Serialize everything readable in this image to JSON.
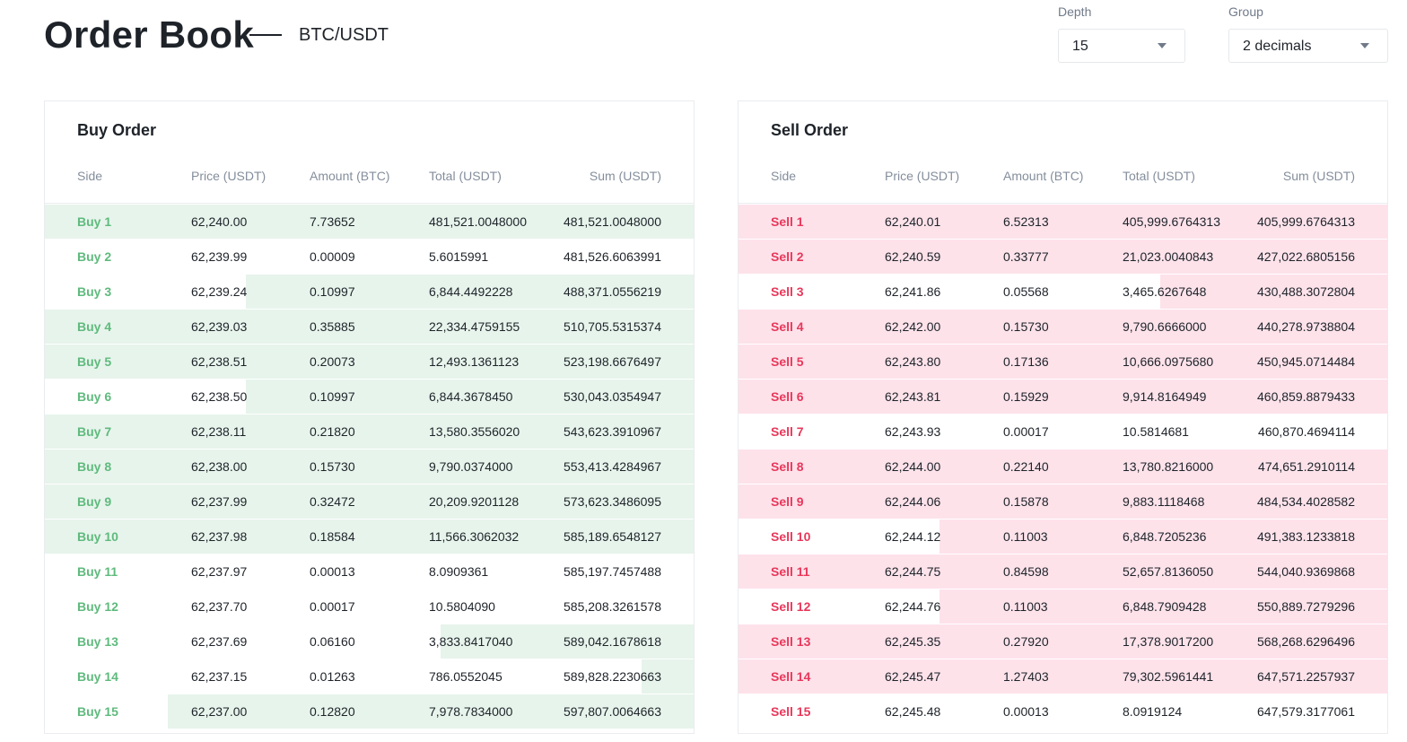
{
  "header": {
    "title": "Order Book",
    "pair": "BTC/USDT"
  },
  "controls": {
    "depth": {
      "label": "Depth",
      "value": "15"
    },
    "group": {
      "label": "Group",
      "value": "2 decimals"
    }
  },
  "colors": {
    "buy_text": "#5fba7d",
    "buy_fill": "#e7f4ec",
    "sell_text": "#e8385b",
    "sell_fill": "#fde2ea"
  },
  "columns": [
    "Side",
    "Price (USDT)",
    "Amount (BTC)",
    "Total (USDT)",
    "Sum (USDT)"
  ],
  "buy": {
    "title": "Buy Order",
    "rows": [
      {
        "side": "Buy 1",
        "price": "62,240.00",
        "amount": "7.73652",
        "total": "481,521.0048000",
        "sum": "481,521.0048000",
        "depth": 1.0
      },
      {
        "side": "Buy 2",
        "price": "62,239.99",
        "amount": "0.00009",
        "total": "5.6015991",
        "sum": "481,526.6063991",
        "depth": 0.0
      },
      {
        "side": "Buy 3",
        "price": "62,239.24",
        "amount": "0.10997",
        "total": "6,844.4492228",
        "sum": "488,371.0556219",
        "depth": 0.69
      },
      {
        "side": "Buy 4",
        "price": "62,239.03",
        "amount": "0.35885",
        "total": "22,334.4759155",
        "sum": "510,705.5315374",
        "depth": 1.0
      },
      {
        "side": "Buy 5",
        "price": "62,238.51",
        "amount": "0.20073",
        "total": "12,493.1361123",
        "sum": "523,198.6676497",
        "depth": 1.0
      },
      {
        "side": "Buy 6",
        "price": "62,238.50",
        "amount": "0.10997",
        "total": "6,844.3678450",
        "sum": "530,043.0354947",
        "depth": 0.69
      },
      {
        "side": "Buy 7",
        "price": "62,238.11",
        "amount": "0.21820",
        "total": "13,580.3556020",
        "sum": "543,623.3910967",
        "depth": 1.0
      },
      {
        "side": "Buy 8",
        "price": "62,238.00",
        "amount": "0.15730",
        "total": "9,790.0374000",
        "sum": "553,413.4284967",
        "depth": 1.0
      },
      {
        "side": "Buy 9",
        "price": "62,237.99",
        "amount": "0.32472",
        "total": "20,209.9201128",
        "sum": "573,623.3486095",
        "depth": 1.0
      },
      {
        "side": "Buy 10",
        "price": "62,237.98",
        "amount": "0.18584",
        "total": "11,566.3062032",
        "sum": "585,189.6548127",
        "depth": 1.0
      },
      {
        "side": "Buy 11",
        "price": "62,237.97",
        "amount": "0.00013",
        "total": "8.0909361",
        "sum": "585,197.7457488",
        "depth": 0.0
      },
      {
        "side": "Buy 12",
        "price": "62,237.70",
        "amount": "0.00017",
        "total": "10.5804090",
        "sum": "585,208.3261578",
        "depth": 0.0
      },
      {
        "side": "Buy 13",
        "price": "62,237.69",
        "amount": "0.06160",
        "total": "3,833.8417040",
        "sum": "589,042.1678618",
        "depth": 0.39
      },
      {
        "side": "Buy 14",
        "price": "62,237.15",
        "amount": "0.01263",
        "total": "786.0552045",
        "sum": "589,828.2230663",
        "depth": 0.08
      },
      {
        "side": "Buy 15",
        "price": "62,237.00",
        "amount": "0.12820",
        "total": "7,978.7834000",
        "sum": "597,807.0064663",
        "depth": 0.81
      }
    ]
  },
  "sell": {
    "title": "Sell Order",
    "rows": [
      {
        "side": "Sell 1",
        "price": "62,240.01",
        "amount": "6.52313",
        "total": "405,999.6764313",
        "sum": "405,999.6764313",
        "depth": 1.0
      },
      {
        "side": "Sell 2",
        "price": "62,240.59",
        "amount": "0.33777",
        "total": "21,023.0040843",
        "sum": "427,022.6805156",
        "depth": 1.0
      },
      {
        "side": "Sell 3",
        "price": "62,241.86",
        "amount": "0.05568",
        "total": "3,465.6267648",
        "sum": "430,488.3072804",
        "depth": 0.35
      },
      {
        "side": "Sell 4",
        "price": "62,242.00",
        "amount": "0.15730",
        "total": "9,790.6666000",
        "sum": "440,278.9738804",
        "depth": 1.0
      },
      {
        "side": "Sell 5",
        "price": "62,243.80",
        "amount": "0.17136",
        "total": "10,666.0975680",
        "sum": "450,945.0714484",
        "depth": 1.0
      },
      {
        "side": "Sell 6",
        "price": "62,243.81",
        "amount": "0.15929",
        "total": "9,914.8164949",
        "sum": "460,859.8879433",
        "depth": 1.0
      },
      {
        "side": "Sell 7",
        "price": "62,243.93",
        "amount": "0.00017",
        "total": "10.5814681",
        "sum": "460,870.4694114",
        "depth": 0.0
      },
      {
        "side": "Sell 8",
        "price": "62,244.00",
        "amount": "0.22140",
        "total": "13,780.8216000",
        "sum": "474,651.2910114",
        "depth": 1.0
      },
      {
        "side": "Sell 9",
        "price": "62,244.06",
        "amount": "0.15878",
        "total": "9,883.1118468",
        "sum": "484,534.4028582",
        "depth": 1.0
      },
      {
        "side": "Sell 10",
        "price": "62,244.12",
        "amount": "0.11003",
        "total": "6,848.7205236",
        "sum": "491,383.1233818",
        "depth": 0.69
      },
      {
        "side": "Sell 11",
        "price": "62,244.75",
        "amount": "0.84598",
        "total": "52,657.8136050",
        "sum": "544,040.9369868",
        "depth": 1.0
      },
      {
        "side": "Sell 12",
        "price": "62,244.76",
        "amount": "0.11003",
        "total": "6,848.7909428",
        "sum": "550,889.7279296",
        "depth": 0.69
      },
      {
        "side": "Sell 13",
        "price": "62,245.35",
        "amount": "0.27920",
        "total": "17,378.9017200",
        "sum": "568,268.6296496",
        "depth": 1.0
      },
      {
        "side": "Sell 14",
        "price": "62,245.47",
        "amount": "1.27403",
        "total": "79,302.5961441",
        "sum": "647,571.2257937",
        "depth": 1.0
      },
      {
        "side": "Sell 15",
        "price": "62,245.48",
        "amount": "0.00013",
        "total": "8.0919124",
        "sum": "647,579.3177061",
        "depth": 0.0
      }
    ]
  }
}
